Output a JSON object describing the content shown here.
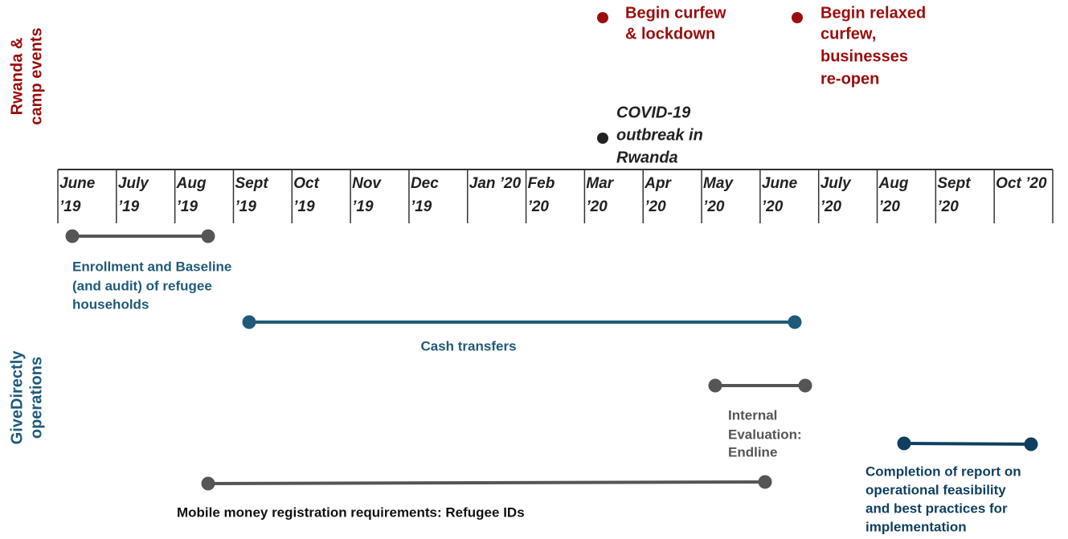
{
  "side_labels": [
    {
      "lines": [
        "Rwanda &",
        "camp events"
      ]
    },
    {
      "lines": [
        "GiveDirectly",
        "operations"
      ]
    }
  ],
  "months": [
    {
      "lines": [
        "June",
        "’19"
      ]
    },
    {
      "lines": [
        "July",
        "’19"
      ]
    },
    {
      "lines": [
        "Aug",
        "’19"
      ]
    },
    {
      "lines": [
        "Sept",
        "’19"
      ]
    },
    {
      "lines": [
        "Oct",
        "’19"
      ]
    },
    {
      "lines": [
        "Nov",
        "’19"
      ]
    },
    {
      "lines": [
        "Dec",
        "’19"
      ]
    },
    {
      "lines": [
        "Jan ’20"
      ]
    },
    {
      "lines": [
        "Feb",
        "’20"
      ]
    },
    {
      "lines": [
        "Mar",
        "’20"
      ]
    },
    {
      "lines": [
        "Apr",
        "’20"
      ]
    },
    {
      "lines": [
        "May",
        "’20"
      ]
    },
    {
      "lines": [
        "June",
        "’20"
      ]
    },
    {
      "lines": [
        "July",
        "’20"
      ]
    },
    {
      "lines": [
        "Aug",
        "’20"
      ]
    },
    {
      "lines": [
        "Sept",
        "’20"
      ]
    },
    {
      "lines": [
        "Oct ’20"
      ]
    }
  ],
  "events": [
    {
      "lines": [
        "Begin curfew",
        "& lockdown"
      ]
    },
    {
      "lines": [
        "Begin relaxed",
        "curfew,",
        "businesses",
        "re-open"
      ]
    },
    {
      "lines": [
        "COVID-19",
        "outbreak in",
        "Rwanda"
      ]
    }
  ],
  "operations": [
    {
      "lines": [
        "Enrollment and Baseline",
        "(and audit) of refugee",
        "households"
      ]
    },
    {
      "lines": [
        "Cash transfers"
      ]
    },
    {
      "lines": [
        "Internal",
        "Evaluation:",
        "Endline"
      ]
    },
    {
      "lines": [
        "Completion of report on",
        "operational feasibility",
        "and best practices for",
        "implementation"
      ]
    },
    {
      "lines": [
        "Mobile money registration requirements: Refugee IDs"
      ]
    }
  ]
}
